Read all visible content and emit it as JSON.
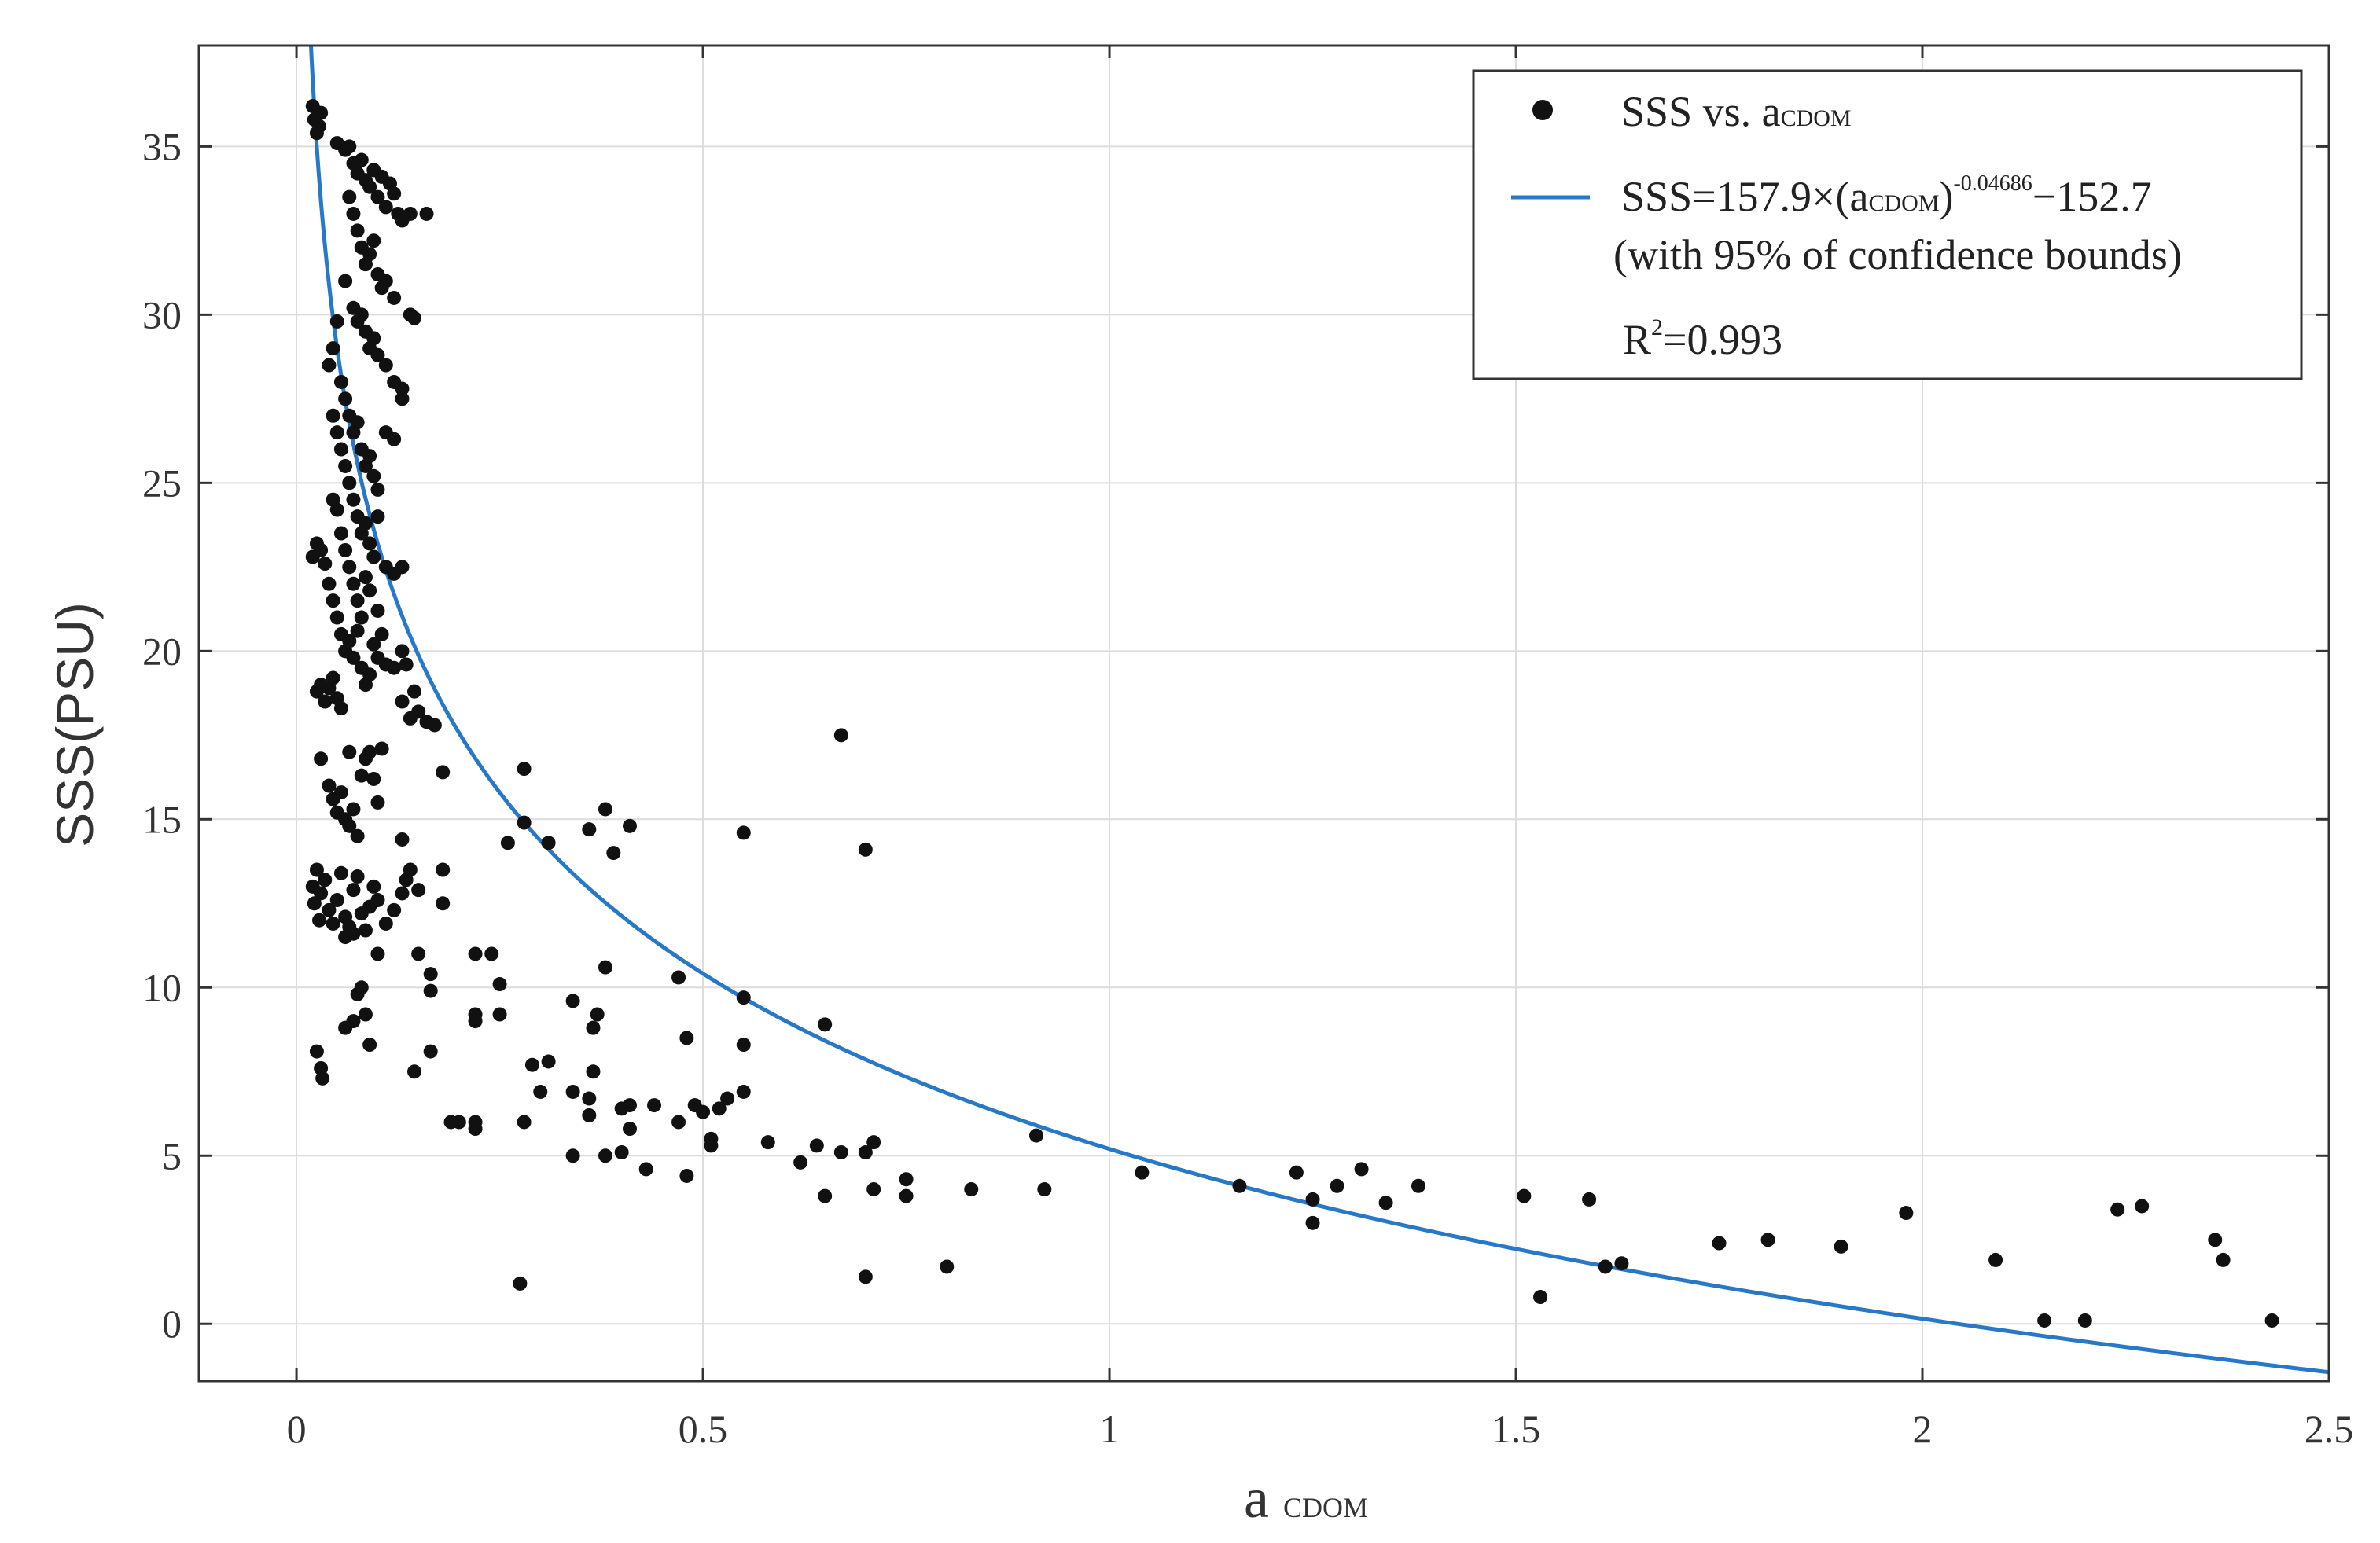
{
  "chart_data": {
    "type": "scatter",
    "title": "",
    "xlabel": {
      "main": "a",
      "sub": "CDOM"
    },
    "ylabel": "SSS(PSU)",
    "xlim": [
      -0.12,
      2.5
    ],
    "ylim": [
      -1.7,
      38
    ],
    "grid": true,
    "xticks": [
      "0",
      "0.5",
      "1",
      "1.5",
      "2",
      "2.5"
    ],
    "yticks": [
      "0",
      "5",
      "10",
      "15",
      "20",
      "25",
      "30",
      "35"
    ],
    "legend": {
      "position": "top-right",
      "scatter_label": {
        "main": "SSS  vs. a",
        "sub": "CDOM"
      },
      "fit_label": {
        "p1": "SSS=157.9×(a",
        "sub": "CDOM",
        "p2": ")",
        "sup": "-0.04686",
        "p3": "−152.7"
      },
      "note": "(with 95% of confidence bounds)",
      "r2": {
        "R": "R",
        "sup": "2",
        "rest": "=0.993"
      }
    },
    "fit": {
      "a": 157.9,
      "b": -0.04686,
      "c": -152.7,
      "color": "#2878C8"
    },
    "marker_color": "#111111",
    "series": [
      {
        "name": "SSS vs. a_CDOM",
        "points": [
          [
            0.02,
            36.2
          ],
          [
            0.022,
            35.8
          ],
          [
            0.025,
            35.4
          ],
          [
            0.03,
            36.0
          ],
          [
            0.028,
            35.6
          ],
          [
            0.05,
            35.1
          ],
          [
            0.06,
            34.9
          ],
          [
            0.065,
            35.0
          ],
          [
            0.07,
            34.5
          ],
          [
            0.075,
            34.2
          ],
          [
            0.08,
            34.6
          ],
          [
            0.085,
            34.0
          ],
          [
            0.09,
            33.8
          ],
          [
            0.095,
            34.3
          ],
          [
            0.1,
            33.5
          ],
          [
            0.105,
            34.1
          ],
          [
            0.11,
            33.2
          ],
          [
            0.115,
            33.9
          ],
          [
            0.12,
            33.6
          ],
          [
            0.125,
            33.0
          ],
          [
            0.13,
            32.8
          ],
          [
            0.14,
            33.0
          ],
          [
            0.16,
            33.0
          ],
          [
            0.065,
            33.5
          ],
          [
            0.07,
            33.0
          ],
          [
            0.075,
            32.5
          ],
          [
            0.08,
            32.0
          ],
          [
            0.085,
            31.5
          ],
          [
            0.09,
            31.8
          ],
          [
            0.095,
            32.2
          ],
          [
            0.1,
            31.2
          ],
          [
            0.105,
            30.8
          ],
          [
            0.11,
            31.0
          ],
          [
            0.12,
            30.5
          ],
          [
            0.06,
            31.0
          ],
          [
            0.07,
            30.2
          ],
          [
            0.075,
            29.8
          ],
          [
            0.08,
            30.0
          ],
          [
            0.085,
            29.5
          ],
          [
            0.09,
            29.0
          ],
          [
            0.095,
            29.3
          ],
          [
            0.1,
            28.8
          ],
          [
            0.11,
            28.5
          ],
          [
            0.12,
            28.0
          ],
          [
            0.13,
            27.8
          ],
          [
            0.14,
            30.0
          ],
          [
            0.145,
            29.9
          ],
          [
            0.05,
            29.8
          ],
          [
            0.045,
            29.0
          ],
          [
            0.04,
            28.5
          ],
          [
            0.055,
            28.0
          ],
          [
            0.06,
            27.5
          ],
          [
            0.065,
            27.0
          ],
          [
            0.07,
            26.5
          ],
          [
            0.075,
            26.8
          ],
          [
            0.08,
            26.0
          ],
          [
            0.085,
            25.5
          ],
          [
            0.09,
            25.8
          ],
          [
            0.095,
            25.2
          ],
          [
            0.1,
            24.8
          ],
          [
            0.11,
            26.5
          ],
          [
            0.12,
            26.3
          ],
          [
            0.13,
            27.5
          ],
          [
            0.045,
            27.0
          ],
          [
            0.05,
            26.5
          ],
          [
            0.055,
            26.0
          ],
          [
            0.06,
            25.5
          ],
          [
            0.065,
            25.0
          ],
          [
            0.07,
            24.5
          ],
          [
            0.075,
            24.0
          ],
          [
            0.08,
            23.5
          ],
          [
            0.085,
            23.8
          ],
          [
            0.09,
            23.2
          ],
          [
            0.095,
            22.8
          ],
          [
            0.1,
            24.0
          ],
          [
            0.045,
            24.5
          ],
          [
            0.05,
            24.2
          ],
          [
            0.055,
            23.5
          ],
          [
            0.06,
            23.0
          ],
          [
            0.065,
            22.5
          ],
          [
            0.07,
            22.0
          ],
          [
            0.075,
            21.5
          ],
          [
            0.08,
            21.0
          ],
          [
            0.085,
            22.2
          ],
          [
            0.09,
            21.8
          ],
          [
            0.1,
            21.2
          ],
          [
            0.11,
            22.5
          ],
          [
            0.12,
            22.3
          ],
          [
            0.13,
            22.5
          ],
          [
            0.02,
            22.8
          ],
          [
            0.025,
            23.2
          ],
          [
            0.03,
            23.0
          ],
          [
            0.035,
            22.6
          ],
          [
            0.04,
            22.0
          ],
          [
            0.045,
            21.5
          ],
          [
            0.05,
            21.0
          ],
          [
            0.055,
            20.5
          ],
          [
            0.06,
            20.0
          ],
          [
            0.065,
            20.3
          ],
          [
            0.07,
            19.8
          ],
          [
            0.075,
            20.6
          ],
          [
            0.08,
            19.5
          ],
          [
            0.085,
            19.0
          ],
          [
            0.09,
            19.3
          ],
          [
            0.095,
            20.2
          ],
          [
            0.1,
            19.8
          ],
          [
            0.105,
            20.5
          ],
          [
            0.11,
            19.6
          ],
          [
            0.12,
            19.5
          ],
          [
            0.13,
            20.0
          ],
          [
            0.025,
            18.8
          ],
          [
            0.03,
            19.0
          ],
          [
            0.035,
            18.5
          ],
          [
            0.04,
            18.9
          ],
          [
            0.045,
            19.2
          ],
          [
            0.05,
            18.6
          ],
          [
            0.055,
            18.3
          ],
          [
            0.13,
            18.5
          ],
          [
            0.14,
            18.0
          ],
          [
            0.15,
            18.2
          ],
          [
            0.16,
            17.9
          ],
          [
            0.17,
            17.8
          ],
          [
            0.145,
            18.8
          ],
          [
            0.135,
            19.6
          ],
          [
            0.03,
            16.8
          ],
          [
            0.04,
            16.0
          ],
          [
            0.045,
            15.6
          ],
          [
            0.05,
            15.2
          ],
          [
            0.055,
            15.8
          ],
          [
            0.06,
            15.0
          ],
          [
            0.065,
            14.8
          ],
          [
            0.07,
            15.3
          ],
          [
            0.075,
            14.5
          ],
          [
            0.08,
            16.3
          ],
          [
            0.085,
            16.8
          ],
          [
            0.09,
            17.0
          ],
          [
            0.095,
            16.2
          ],
          [
            0.1,
            15.5
          ],
          [
            0.105,
            17.1
          ],
          [
            0.065,
            17.0
          ],
          [
            0.02,
            13.0
          ],
          [
            0.022,
            12.5
          ],
          [
            0.025,
            13.5
          ],
          [
            0.028,
            12.0
          ],
          [
            0.03,
            12.8
          ],
          [
            0.035,
            13.2
          ],
          [
            0.04,
            12.3
          ],
          [
            0.045,
            11.9
          ],
          [
            0.05,
            12.6
          ],
          [
            0.055,
            13.4
          ],
          [
            0.06,
            12.1
          ],
          [
            0.065,
            11.8
          ],
          [
            0.07,
            12.9
          ],
          [
            0.075,
            13.3
          ],
          [
            0.08,
            12.2
          ],
          [
            0.085,
            11.7
          ],
          [
            0.09,
            12.4
          ],
          [
            0.095,
            13.0
          ],
          [
            0.1,
            12.6
          ],
          [
            0.11,
            11.9
          ],
          [
            0.12,
            12.3
          ],
          [
            0.13,
            12.8
          ],
          [
            0.14,
            13.5
          ],
          [
            0.15,
            12.9
          ],
          [
            0.135,
            13.2
          ],
          [
            0.13,
            14.4
          ],
          [
            0.06,
            11.5
          ],
          [
            0.07,
            11.6
          ],
          [
            0.075,
            9.8
          ],
          [
            0.08,
            10.0
          ],
          [
            0.085,
            9.2
          ],
          [
            0.07,
            9.0
          ],
          [
            0.06,
            8.8
          ],
          [
            0.09,
            8.3
          ],
          [
            0.025,
            8.1
          ],
          [
            0.03,
            7.6
          ],
          [
            0.032,
            7.3
          ],
          [
            0.1,
            11.0
          ],
          [
            0.18,
            16.4
          ],
          [
            0.18,
            13.5
          ],
          [
            0.18,
            12.5
          ],
          [
            0.15,
            11.0
          ],
          [
            0.165,
            10.4
          ],
          [
            0.165,
            9.9
          ],
          [
            0.165,
            8.1
          ],
          [
            0.145,
            7.5
          ],
          [
            0.19,
            6.0
          ],
          [
            0.2,
            6.0
          ],
          [
            0.22,
            11.0
          ],
          [
            0.24,
            11.0
          ],
          [
            0.25,
            10.1
          ],
          [
            0.22,
            9.2
          ],
          [
            0.25,
            9.2
          ],
          [
            0.22,
            9.0
          ],
          [
            0.22,
            6.0
          ],
          [
            0.22,
            5.8
          ],
          [
            0.26,
            14.3
          ],
          [
            0.28,
            16.5
          ],
          [
            0.28,
            14.9
          ],
          [
            0.31,
            14.3
          ],
          [
            0.29,
            7.7
          ],
          [
            0.3,
            6.9
          ],
          [
            0.28,
            6.0
          ],
          [
            0.31,
            7.8
          ],
          [
            0.275,
            1.2
          ],
          [
            0.34,
            9.6
          ],
          [
            0.34,
            6.9
          ],
          [
            0.34,
            5.0
          ],
          [
            0.36,
            14.7
          ],
          [
            0.38,
            15.3
          ],
          [
            0.39,
            14.0
          ],
          [
            0.36,
            6.7
          ],
          [
            0.365,
            8.8
          ],
          [
            0.37,
            9.2
          ],
          [
            0.365,
            7.5
          ],
          [
            0.36,
            6.2
          ],
          [
            0.38,
            10.6
          ],
          [
            0.38,
            5.0
          ],
          [
            0.4,
            6.4
          ],
          [
            0.4,
            5.1
          ],
          [
            0.41,
            14.8
          ],
          [
            0.41,
            6.5
          ],
          [
            0.41,
            5.8
          ],
          [
            0.43,
            4.6
          ],
          [
            0.44,
            6.5
          ],
          [
            0.47,
            10.3
          ],
          [
            0.48,
            8.5
          ],
          [
            0.47,
            6.0
          ],
          [
            0.48,
            4.4
          ],
          [
            0.49,
            6.5
          ],
          [
            0.5,
            6.3
          ],
          [
            0.51,
            5.5
          ],
          [
            0.51,
            5.3
          ],
          [
            0.52,
            6.4
          ],
          [
            0.53,
            6.7
          ],
          [
            0.55,
            14.6
          ],
          [
            0.55,
            9.7
          ],
          [
            0.55,
            8.3
          ],
          [
            0.55,
            6.9
          ],
          [
            0.58,
            5.4
          ],
          [
            0.62,
            4.8
          ],
          [
            0.64,
            5.3
          ],
          [
            0.65,
            8.9
          ],
          [
            0.65,
            3.8
          ],
          [
            0.67,
            5.1
          ],
          [
            0.67,
            17.5
          ],
          [
            0.7,
            14.1
          ],
          [
            0.7,
            5.1
          ],
          [
            0.71,
            5.4
          ],
          [
            0.71,
            4.0
          ],
          [
            0.7,
            1.4
          ],
          [
            0.75,
            4.3
          ],
          [
            0.75,
            3.8
          ],
          [
            0.8,
            1.7
          ],
          [
            0.83,
            4.0
          ],
          [
            0.91,
            5.6
          ],
          [
            0.92,
            4.0
          ],
          [
            1.04,
            4.5
          ],
          [
            1.16,
            4.1
          ],
          [
            1.23,
            4.5
          ],
          [
            1.25,
            3.0
          ],
          [
            1.25,
            3.7
          ],
          [
            1.28,
            4.1
          ],
          [
            1.31,
            4.6
          ],
          [
            1.34,
            3.6
          ],
          [
            1.38,
            4.1
          ],
          [
            1.51,
            3.8
          ],
          [
            1.53,
            0.8
          ],
          [
            1.59,
            3.7
          ],
          [
            1.61,
            1.7
          ],
          [
            1.63,
            1.8
          ],
          [
            1.75,
            2.4
          ],
          [
            1.81,
            2.5
          ],
          [
            1.9,
            2.3
          ],
          [
            1.98,
            3.3
          ],
          [
            2.09,
            1.9
          ],
          [
            2.15,
            0.1
          ],
          [
            2.2,
            0.1
          ],
          [
            2.24,
            3.4
          ],
          [
            2.27,
            3.5
          ],
          [
            2.36,
            2.5
          ],
          [
            2.37,
            1.9
          ],
          [
            2.43,
            0.1
          ]
        ]
      }
    ]
  }
}
